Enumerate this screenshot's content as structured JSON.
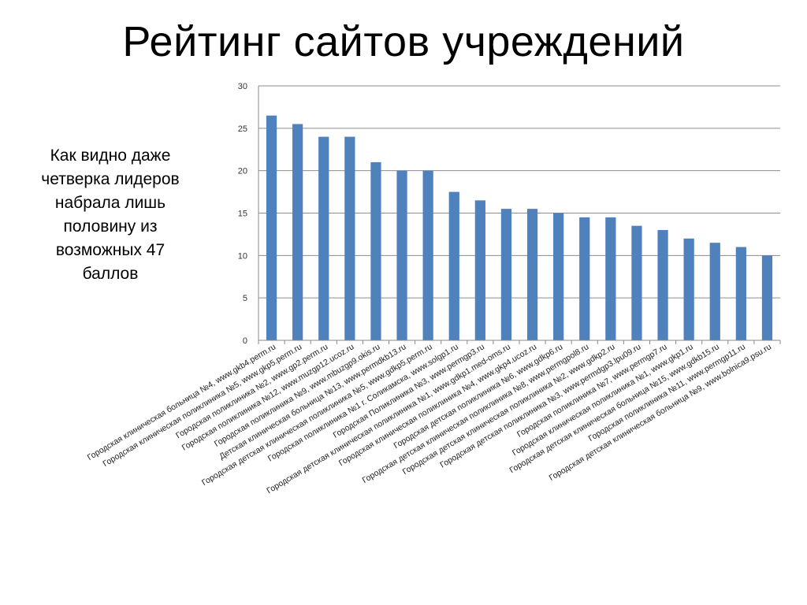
{
  "slide": {
    "title": "Рейтинг сайтов учреждений",
    "note": "Как видно даже\nчетверка лидеров\nнабрала лишь\nполовину из\nвозможных 47\nбаллов"
  },
  "colors": {
    "bar": "#4F81BD",
    "grid": "#8c8c8c",
    "axis": "#888888"
  },
  "chart_data": {
    "type": "bar",
    "title": "",
    "xlabel": "",
    "ylabel": "",
    "ylim": [
      0,
      30
    ],
    "yticks": [
      0,
      5,
      10,
      15,
      20,
      25,
      30
    ],
    "grid": true,
    "legend": "none",
    "categories": [
      "Городская клиническая больница №4, www.gkb4.perm.ru",
      "Городская клиническая поликлиника №5, www.gkp5.perm.ru",
      "Городская поликлиника №2,  www.gp2.perm.ru",
      "Городская поликлиника №12,  www.muzgp12.ucoz.ru",
      "Городская поликлиника №9, www.mbuzgp9.okis.ru",
      "Детская клиническая больница №13,  www.permdkb13.ru",
      "Городская детская клиническая поликлиника №5, www.gdkp5.perm.ru",
      "Городская поликлиника №1  г. Соликамска, www.solgp1.ru",
      "Городская Поликлиника №3,  www.permgp3.ru",
      "Городская детская клиническая поликлиника №1, www.gdkp1.med-oms.ru",
      "Городская клиническая поликлиника №4,  www.gkp4.ucoz.ru",
      "Городская детская поликлиника №6,  www.gdkp6.ru",
      "Городская детская клиническая поликлиника №8, www.permgpol8.ru",
      "Городская детская клиническая поликлиника №2, www.gdkp2.ru",
      "Городская детская поликлиника №3, www.permdgp3.lpu09.ru",
      "Городская поликлиника №7, www.permgp7.ru",
      "Городская клиническая поликлиника №1,  www.gkp1.ru",
      "Городская детская клиническая больница №15, www.gdkb15.ru",
      "Городская поликлиника №11, www.permgp11.ru",
      "Городская детская клиническая больница №9, www.bolnica9.psu.ru"
    ],
    "values": [
      26.5,
      25.5,
      24,
      24,
      21,
      20,
      20,
      17.5,
      16.5,
      15.5,
      15.5,
      15,
      14.5,
      14.5,
      13.5,
      13,
      12,
      11.5,
      11,
      10
    ]
  }
}
